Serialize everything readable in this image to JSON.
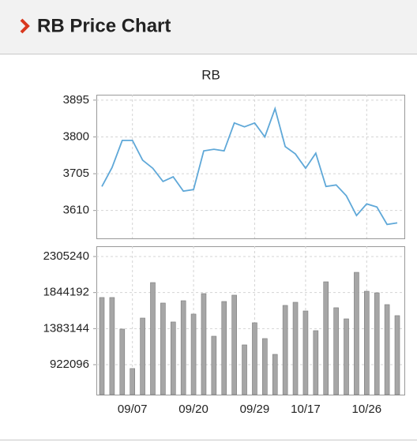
{
  "header": {
    "title": "RB Price Chart"
  },
  "chart_data": [
    {
      "type": "line",
      "title": "RB",
      "color": "#5fa8d8",
      "grid": true,
      "values": [
        3672,
        3721,
        3791,
        3791,
        3740,
        3719,
        3685,
        3697,
        3660,
        3664,
        3764,
        3768,
        3764,
        3836,
        3826,
        3836,
        3800,
        3873,
        3775,
        3756,
        3719,
        3758,
        3672,
        3676,
        3648,
        3597,
        3627,
        3619,
        3574,
        3578
      ],
      "ylim": [
        3538,
        3909
      ],
      "yticks": [
        3610,
        3705,
        3800,
        3895
      ]
    },
    {
      "type": "bar",
      "color": "#a6a6a6",
      "grid": true,
      "categories": [
        null,
        null,
        null,
        "09/07",
        null,
        null,
        null,
        null,
        null,
        "09/20",
        null,
        null,
        null,
        null,
        null,
        "09/29",
        null,
        null,
        null,
        null,
        "10/17",
        null,
        null,
        null,
        null,
        null,
        "10/26",
        null,
        null,
        null
      ],
      "values": [
        1781000,
        1781000,
        1377000,
        873000,
        1518000,
        1972000,
        1710000,
        1468000,
        1740000,
        1569000,
        1831000,
        1286000,
        1730000,
        1811000,
        1175000,
        1458000,
        1256000,
        1054000,
        1680000,
        1720000,
        1609000,
        1357000,
        1982000,
        1650000,
        1508000,
        2103000,
        1861000,
        1841000,
        1690000,
        1549000
      ],
      "ylim": [
        538733,
        2436392
      ],
      "yticks": [
        922096,
        1383144,
        1844192,
        2305240
      ]
    }
  ]
}
